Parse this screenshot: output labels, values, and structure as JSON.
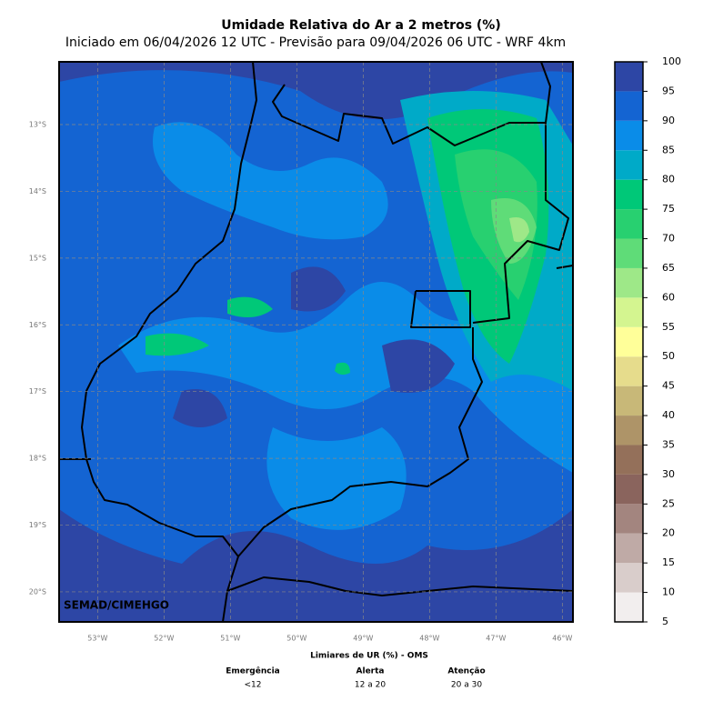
{
  "map": {
    "title": "Umidade Relativa do Ar a 2 metros (%)",
    "subtitle": "Iniciado em 06/04/2026 12 UTC - Previsão para 09/04/2026 06 UTC - WRF 4km",
    "watermark": "SEMAD/CIMEHGO",
    "xlim": [
      -53.58,
      -45.84
    ],
    "ylim": [
      -20.45,
      -12.06
    ],
    "xticks": [
      {
        "value": -53,
        "label": "53°W"
      },
      {
        "value": -52,
        "label": "52°W"
      },
      {
        "value": -51,
        "label": "51°W"
      },
      {
        "value": -50,
        "label": "50°W"
      },
      {
        "value": -49,
        "label": "49°W"
      },
      {
        "value": -48,
        "label": "48°W"
      },
      {
        "value": -47,
        "label": "47°W"
      },
      {
        "value": -46,
        "label": "46°W"
      }
    ],
    "yticks": [
      {
        "value": -13,
        "label": "13°S"
      },
      {
        "value": -14,
        "label": "14°S"
      },
      {
        "value": -15,
        "label": "15°S"
      },
      {
        "value": -16,
        "label": "16°S"
      },
      {
        "value": -17,
        "label": "17°S"
      },
      {
        "value": -18,
        "label": "18°S"
      },
      {
        "value": -19,
        "label": "19°S"
      },
      {
        "value": -20,
        "label": "20°S"
      }
    ],
    "colorbar": {
      "levels": [
        5,
        10,
        15,
        20,
        25,
        30,
        35,
        40,
        45,
        50,
        55,
        60,
        65,
        70,
        75,
        80,
        85,
        90,
        95,
        100
      ],
      "colors": [
        "#f2eeee",
        "#d9cdcb",
        "#bfaaa6",
        "#a3857f",
        "#8a645d",
        "#94705a",
        "#ae9468",
        "#c8b878",
        "#e6dc8c",
        "#ffff99",
        "#d4f590",
        "#9ee888",
        "#5fdc78",
        "#28d070",
        "#00c878",
        "#00aac8",
        "#0a8ce8",
        "#1464d2",
        "#2d46a5"
      ]
    },
    "thresholds": {
      "title": "Limiares de UR (%) - OMS",
      "items": [
        {
          "name": "Emergência",
          "range": "<12"
        },
        {
          "name": "Alerta",
          "range": "12 a 20"
        },
        {
          "name": "Atenção",
          "range": "20 a 30"
        }
      ]
    }
  }
}
